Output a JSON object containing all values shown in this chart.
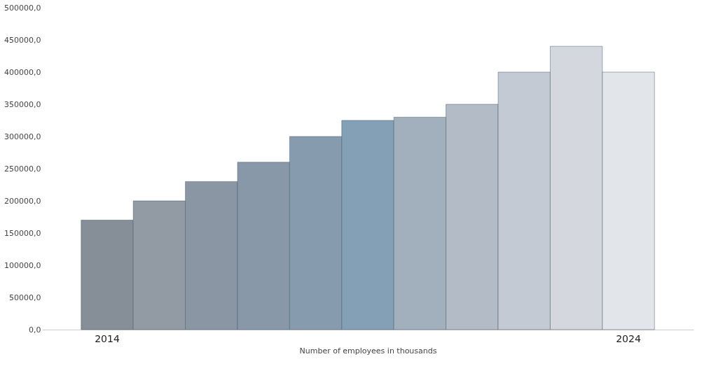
{
  "chart_data": {
    "type": "bar",
    "xlabel": "Number of employees in thousands",
    "categories": [
      "2014",
      null,
      null,
      null,
      null,
      null,
      null,
      null,
      null,
      null,
      "2024"
    ],
    "values": [
      170000,
      200000,
      230000,
      260000,
      300000,
      325000,
      330000,
      350000,
      400000,
      440000,
      400000
    ],
    "colors": [
      "#868e98",
      "#929aa4",
      "#8a96a4",
      "#8898a8",
      "#879bae",
      "#84a0b6",
      "#a2afbd",
      "#b3bbc6",
      "#c4cad3",
      "#d4d8de",
      "#e2e6ea"
    ],
    "ylim": [
      0,
      500000
    ],
    "yticks": [
      {
        "value": 0,
        "label": "0,0"
      },
      {
        "value": 50000,
        "label": "50000,0"
      },
      {
        "value": 100000,
        "label": "100000,0"
      },
      {
        "value": 150000,
        "label": "150000,0"
      },
      {
        "value": 200000,
        "label": "200000,0"
      },
      {
        "value": 250000,
        "label": "250000,0"
      },
      {
        "value": 300000,
        "label": "300000,0"
      },
      {
        "value": 350000,
        "label": "350000,0"
      },
      {
        "value": 400000,
        "label": "400000,0"
      },
      {
        "value": 450000,
        "label": "450000,0"
      },
      {
        "value": 500000,
        "label": "500000,0"
      }
    ],
    "grid": false
  }
}
